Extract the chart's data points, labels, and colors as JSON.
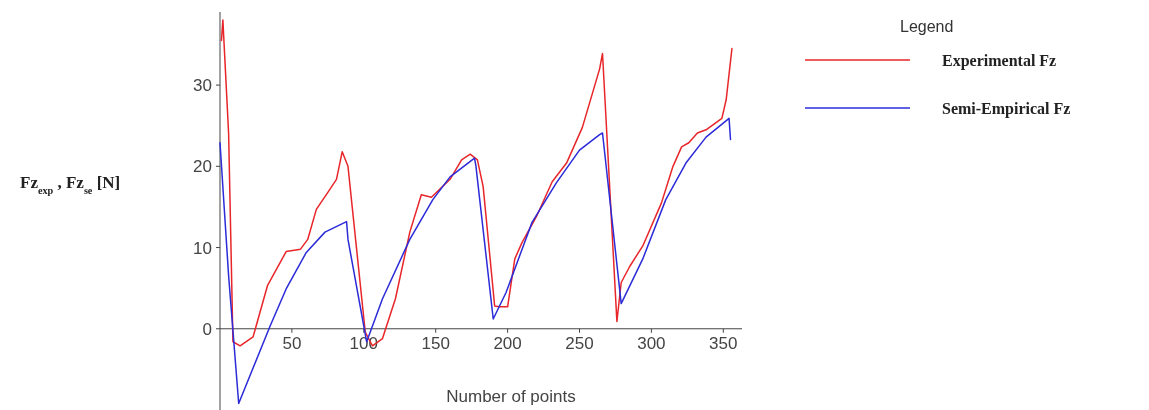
{
  "chart_data": {
    "type": "line",
    "xlabel": "Number of points",
    "ylabel": "Fz$_{exp}$ , Fz$_{se}$ [N]",
    "legend_title": "Legend",
    "legend": "right",
    "grid": false,
    "marker": "none",
    "line_style": "solid",
    "xlim": [
      0,
      363
    ],
    "ylim": [
      -10,
      39
    ],
    "xticks": [
      50,
      100,
      150,
      200,
      250,
      300,
      350
    ],
    "yticks": [
      0,
      10,
      20,
      30
    ],
    "series": [
      {
        "name": "Experimental Fz",
        "color": "#e8262a",
        "x": [
          1,
          2,
          6,
          9,
          14,
          23,
          33,
          46,
          56,
          61,
          67,
          75,
          81,
          85,
          89,
          101,
          106,
          113,
          122,
          132,
          140,
          147,
          160,
          168,
          174,
          179,
          183,
          191,
          194,
          200,
          205,
          210,
          220,
          231,
          241,
          252,
          264,
          266,
          276,
          279,
          285,
          294,
          307,
          315,
          321,
          326,
          332,
          338,
          349,
          352,
          356
        ],
        "values": [
          35.5,
          38,
          24,
          -1.6,
          -2.1,
          -1,
          5.3,
          9.5,
          9.8,
          11,
          14.7,
          16.8,
          18.4,
          21.8,
          20,
          -0.4,
          -2.1,
          -1.2,
          3.7,
          11.9,
          16.5,
          16.2,
          18.4,
          20.8,
          21.5,
          20.8,
          17.5,
          2.8,
          2.7,
          2.7,
          8.6,
          10.6,
          13.8,
          18.1,
          20.4,
          24.8,
          32,
          33.9,
          0.9,
          5.7,
          7.7,
          10.2,
          15.5,
          20,
          22.4,
          22.9,
          24.1,
          24.5,
          25.9,
          28.2,
          34.5
        ]
      },
      {
        "name": "Semi-Empirical Fz",
        "color": "#2b2bd8",
        "x": [
          0,
          6,
          13,
          35,
          46,
          60,
          73,
          88,
          89,
          102,
          113,
          132,
          148,
          160,
          177,
          178,
          190,
          199,
          217,
          234,
          250,
          264,
          266,
          279,
          294,
          310,
          324,
          338,
          354,
          355
        ],
        "values": [
          22.9,
          6.5,
          -9.2,
          0.4,
          4.9,
          9.4,
          11.9,
          13.2,
          11,
          -1.6,
          3.7,
          11,
          15.9,
          18.7,
          21,
          20,
          1.2,
          4.5,
          13.1,
          18,
          22,
          23.9,
          24.1,
          3.1,
          8.6,
          15.9,
          20.4,
          23.6,
          25.9,
          23.3
        ]
      }
    ]
  }
}
